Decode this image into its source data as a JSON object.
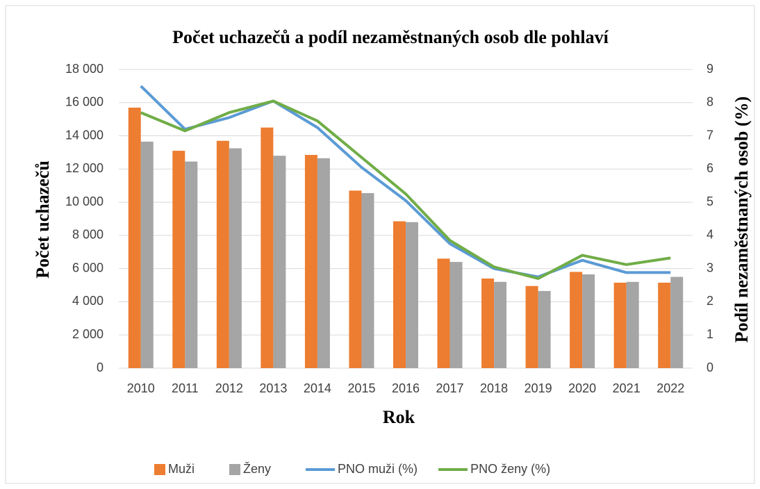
{
  "chart_data": {
    "type": "bar",
    "title": "Počet uchazečů a podíl nezaměstnaných osob dle pohlaví",
    "xlabel": "Rok",
    "ylabel": "Počet uchazečů",
    "y2label": "Podíl nezaměstnaných osob (%)",
    "categories": [
      "2010",
      "2011",
      "2012",
      "2013",
      "2014",
      "2015",
      "2016",
      "2017",
      "2018",
      "2019",
      "2020",
      "2021",
      "2022"
    ],
    "series": [
      {
        "name": "Muži",
        "type": "bar",
        "color": "#ed7d31",
        "values": [
          15700,
          13100,
          13700,
          14500,
          12850,
          10700,
          8850,
          6600,
          5400,
          4950,
          5800,
          5150,
          5150
        ]
      },
      {
        "name": "Ženy",
        "type": "bar",
        "color": "#a5a5a5",
        "values": [
          13650,
          12450,
          13250,
          12800,
          12650,
          10550,
          8800,
          6400,
          5200,
          4650,
          5650,
          5200,
          5500
        ]
      },
      {
        "name": "PNO muži (%)",
        "type": "line",
        "axis": "y2",
        "color": "#5b9bd5",
        "values": [
          8.5,
          7.2,
          7.55,
          8.05,
          7.25,
          6.05,
          5.05,
          3.75,
          3.0,
          2.75,
          3.25,
          2.88,
          2.88
        ]
      },
      {
        "name": "PNO ženy (%)",
        "type": "line",
        "axis": "y2",
        "color": "#70ad47",
        "values": [
          7.7,
          7.15,
          7.7,
          8.05,
          7.45,
          6.35,
          5.25,
          3.85,
          3.05,
          2.7,
          3.4,
          3.12,
          3.32
        ]
      }
    ],
    "ylim": [
      0,
      18000
    ],
    "yticks": [
      0,
      {
        "value": 2000,
        "label": "2 000"
      },
      {
        "value": 4000,
        "label": "4 000"
      },
      {
        "value": 6000,
        "label": "6 000"
      },
      {
        "value": 8000,
        "label": "8 000"
      },
      {
        "value": 10000,
        "label": "10 000"
      },
      {
        "value": 12000,
        "label": "12 000"
      },
      {
        "value": 14000,
        "label": "14 000"
      },
      {
        "value": 16000,
        "label": "16 000"
      },
      {
        "value": 18000,
        "label": "18 000"
      }
    ],
    "y2lim": [
      0,
      9
    ],
    "y2ticks": [
      0,
      1,
      2,
      3,
      4,
      5,
      6,
      7,
      8,
      9
    ],
    "grid": true,
    "legend": "bottom"
  }
}
